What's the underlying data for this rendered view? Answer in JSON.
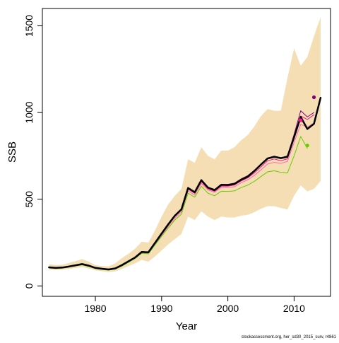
{
  "chart_data": {
    "type": "line",
    "title": "",
    "xlabel": "Year",
    "ylabel": "SSB",
    "xlim": [
      1972,
      2015.5
    ],
    "ylim": [
      -60,
      1600
    ],
    "xticks": [
      1980,
      1990,
      2000,
      2010
    ],
    "yticks": [
      0,
      500,
      1000,
      1500
    ],
    "grid": false,
    "legend": "none",
    "x": [
      1973,
      1974,
      1975,
      1976,
      1977,
      1978,
      1979,
      1980,
      1981,
      1982,
      1983,
      1984,
      1985,
      1986,
      1987,
      1988,
      1989,
      1990,
      1991,
      1992,
      1993,
      1994,
      1995,
      1996,
      1997,
      1998,
      1999,
      2000,
      2001,
      2002,
      2003,
      2004,
      2005,
      2006,
      2007,
      2008,
      2009,
      2010,
      2011,
      2012,
      2013,
      2014
    ],
    "band": {
      "color": "#f5deb3",
      "lower": [
        95,
        92,
        93,
        98,
        103,
        108,
        100,
        90,
        85,
        80,
        84,
        98,
        115,
        130,
        150,
        140,
        170,
        205,
        240,
        270,
        300,
        400,
        380,
        430,
        400,
        380,
        400,
        395,
        395,
        405,
        410,
        425,
        445,
        460,
        460,
        450,
        440,
        520,
        580,
        545,
        560,
        605
      ],
      "upper": [
        125,
        120,
        122,
        132,
        143,
        155,
        140,
        120,
        115,
        113,
        130,
        160,
        185,
        215,
        255,
        250,
        320,
        400,
        470,
        520,
        560,
        730,
        710,
        800,
        750,
        730,
        780,
        780,
        800,
        840,
        870,
        920,
        980,
        1020,
        1010,
        1010,
        1200,
        1370,
        1270,
        1320,
        1440,
        1550
      ]
    },
    "series": [
      {
        "color": "#ff69b4",
        "width": 1,
        "values": [
          104,
          101,
          103,
          109,
          116,
          123,
          114,
          101,
          96,
          92,
          98,
          116,
          138,
          160,
          190,
          188,
          240,
          292,
          343,
          390,
          427,
          548,
          524,
          591,
          553,
          540,
          568,
          567,
          572,
          595,
          612,
          637,
          669,
          703,
          713,
          707,
          718,
          828,
          932,
          916,
          940,
          null
        ]
      },
      {
        "color": "#ff1493",
        "width": 1,
        "values": [
          106,
          103,
          105,
          111,
          118,
          125,
          116,
          103,
          98,
          94,
          100,
          118,
          140,
          162,
          193,
          191,
          244,
          300,
          353,
          400,
          437,
          558,
          534,
          600,
          560,
          546,
          575,
          575,
          582,
          605,
          623,
          652,
          686,
          722,
          732,
          722,
          733,
          852,
          980,
          960,
          987,
          null
        ]
      },
      {
        "color": "#800080",
        "width": 1,
        "values": [
          108,
          105,
          107,
          114,
          121,
          128,
          119,
          106,
          101,
          97,
          103,
          121,
          144,
          166,
          198,
          196,
          250,
          305,
          360,
          408,
          446,
          566,
          545,
          611,
          570,
          557,
          586,
          586,
          593,
          617,
          636,
          667,
          702,
          738,
          748,
          738,
          750,
          874,
          1010,
          975,
          1000,
          null
        ]
      },
      {
        "color": "#66cc00",
        "width": 1,
        "values": [
          103,
          100,
          102,
          108,
          115,
          121,
          112,
          100,
          95,
          91,
          97,
          114,
          136,
          158,
          188,
          185,
          236,
          286,
          334,
          380,
          414,
          535,
          512,
          575,
          535,
          520,
          546,
          545,
          548,
          567,
          581,
          603,
          631,
          658,
          664,
          655,
          652,
          750,
          862,
          793,
          null,
          null
        ]
      },
      {
        "color": "#000000",
        "width": 2.5,
        "values": [
          107,
          104,
          106,
          112,
          119,
          126,
          117,
          104,
          99,
          95,
          101,
          120,
          142,
          164,
          196,
          194,
          248,
          302,
          355,
          405,
          442,
          565,
          540,
          610,
          567,
          552,
          583,
          582,
          588,
          612,
          630,
          663,
          700,
          735,
          745,
          737,
          745,
          858,
          975,
          905,
          935,
          1085
        ]
      }
    ],
    "end_points": [
      {
        "x": 2011,
        "y": 955,
        "color": "#ff1493"
      },
      {
        "x": 2012,
        "y": 810,
        "color": "#66cc00"
      },
      {
        "x": 2013,
        "y": 1088,
        "color": "#800080"
      }
    ],
    "credit": "stockassessment.org, her_sd30_2015_surv, r4861"
  }
}
